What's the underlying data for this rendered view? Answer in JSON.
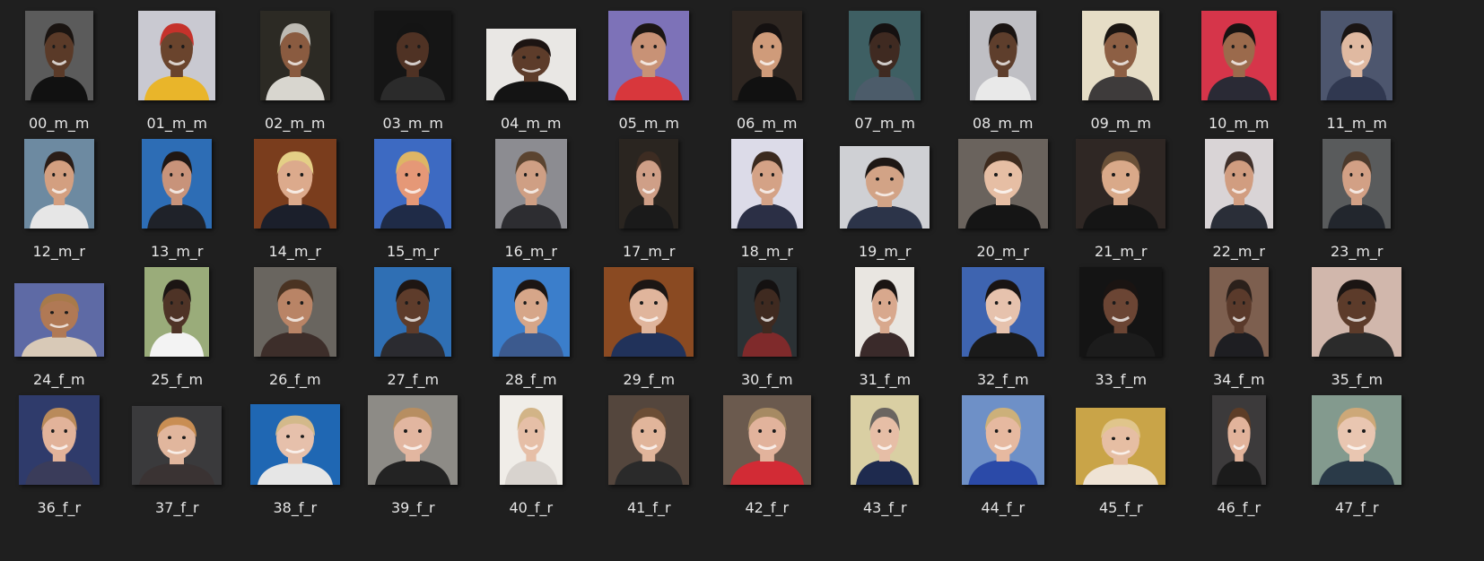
{
  "window": {
    "view": "large-icons",
    "background": "#1f1f1f",
    "label_color": "#e6e6e6"
  },
  "files": [
    {
      "name": "00_m_m",
      "thumb": {
        "bg": "#5b5b5b",
        "skin": "#5a3a28",
        "hair": "#1a1411",
        "top": "#111111",
        "w": 76,
        "h": 100
      }
    },
    {
      "name": "01_m_m",
      "thumb": {
        "bg": "#c9c9d1",
        "skin": "#6a442d",
        "hair": "#c5322b",
        "top": "#e9b52a",
        "w": 86,
        "h": 100
      }
    },
    {
      "name": "02_m_m",
      "thumb": {
        "bg": "#2c2a24",
        "skin": "#8a5b40",
        "hair": "#bdbab3",
        "top": "#d8d6cf",
        "w": 78,
        "h": 100
      }
    },
    {
      "name": "03_m_m",
      "thumb": {
        "bg": "#151515",
        "skin": "#4f3224",
        "hair": "#141414",
        "top": "#2b2b2b",
        "w": 86,
        "h": 100
      }
    },
    {
      "name": "04_m_m",
      "thumb": {
        "bg": "#e9e7e4",
        "skin": "#5d3c2a",
        "hair": "#1c1412",
        "top": "#141414",
        "w": 100,
        "h": 80
      }
    },
    {
      "name": "05_m_m",
      "thumb": {
        "bg": "#7d72b8",
        "skin": "#c89276",
        "hair": "#1c1613",
        "top": "#d8373c",
        "w": 90,
        "h": 100
      }
    },
    {
      "name": "06_m_m",
      "thumb": {
        "bg": "#2e2621",
        "skin": "#cf9b7a",
        "hair": "#151111",
        "top": "#111111",
        "w": 78,
        "h": 100
      }
    },
    {
      "name": "07_m_m",
      "thumb": {
        "bg": "#3e5f63",
        "skin": "#3f2a21",
        "hair": "#151111",
        "top": "#4c5c6a",
        "w": 80,
        "h": 100
      }
    },
    {
      "name": "08_m_m",
      "thumb": {
        "bg": "#bfbfc4",
        "skin": "#5e3e2c",
        "hair": "#1a1412",
        "top": "#e9e9e9",
        "w": 74,
        "h": 100
      }
    },
    {
      "name": "09_m_m",
      "thumb": {
        "bg": "#e6ddc6",
        "skin": "#8d5f44",
        "hair": "#1b1512",
        "top": "#3e3b3b",
        "w": 86,
        "h": 100
      }
    },
    {
      "name": "10_m_m",
      "thumb": {
        "bg": "#d6354a",
        "skin": "#9b6a4c",
        "hair": "#181312",
        "top": "#2a2a35",
        "w": 84,
        "h": 100
      }
    },
    {
      "name": "11_m_m",
      "thumb": {
        "bg": "#4d566e",
        "skin": "#e0b9a1",
        "hair": "#1a1514",
        "top": "#303850",
        "w": 80,
        "h": 100
      }
    },
    {
      "name": "12_m_r",
      "thumb": {
        "bg": "#6d8aa1",
        "skin": "#d39f80",
        "hair": "#2a1d17",
        "top": "#e6e6e6",
        "w": 78,
        "h": 100
      }
    },
    {
      "name": "13_m_r",
      "thumb": {
        "bg": "#2d6db5",
        "skin": "#c8937a",
        "hair": "#1f1714",
        "top": "#1f2229",
        "w": 78,
        "h": 100
      }
    },
    {
      "name": "14_m_r",
      "thumb": {
        "bg": "#7a3d1d",
        "skin": "#dcaa8c",
        "hair": "#e4cf86",
        "top": "#1b1f2b",
        "w": 92,
        "h": 100
      }
    },
    {
      "name": "15_m_r",
      "thumb": {
        "bg": "#3d6ac2",
        "skin": "#e59877",
        "hair": "#ddb565",
        "top": "#1f2b47",
        "w": 86,
        "h": 100
      }
    },
    {
      "name": "16_m_r",
      "thumb": {
        "bg": "#8c8c91",
        "skin": "#cf9f84",
        "hair": "#5b4430",
        "top": "#2d2d31",
        "w": 80,
        "h": 100
      }
    },
    {
      "name": "17_m_r",
      "thumb": {
        "bg": "#2a2520",
        "skin": "#cf9f87",
        "hair": "#3d2c22",
        "top": "#1a1a1a",
        "w": 66,
        "h": 100
      }
    },
    {
      "name": "18_m_r",
      "thumb": {
        "bg": "#dcdbe8",
        "skin": "#d4a286",
        "hair": "#3b2a1f",
        "top": "#2b2f45",
        "w": 80,
        "h": 100
      }
    },
    {
      "name": "19_m_r",
      "thumb": {
        "bg": "#cfd0d4",
        "skin": "#d2a386",
        "hair": "#1e1714",
        "top": "#2c3449",
        "w": 100,
        "h": 92
      }
    },
    {
      "name": "20_m_r",
      "thumb": {
        "bg": "#6a635d",
        "skin": "#e6bea4",
        "hair": "#3e2b1e",
        "top": "#151515",
        "w": 100,
        "h": 100
      }
    },
    {
      "name": "21_m_r",
      "thumb": {
        "bg": "#2f2724",
        "skin": "#d9a989",
        "hair": "#6b5138",
        "top": "#151515",
        "w": 100,
        "h": 100
      }
    },
    {
      "name": "22_m_r",
      "thumb": {
        "bg": "#d9d4d6",
        "skin": "#d19d80",
        "hair": "#40302a",
        "top": "#2a2e38",
        "w": 76,
        "h": 100
      }
    },
    {
      "name": "23_m_r",
      "thumb": {
        "bg": "#595b5c",
        "skin": "#d2a085",
        "hair": "#4c3a2c",
        "top": "#22262d",
        "w": 76,
        "h": 100
      }
    },
    {
      "name": "24_f_m",
      "thumb": {
        "bg": "#5e6aa5",
        "skin": "#b07955",
        "hair": "#a87a4a",
        "top": "#d8c9b7",
        "w": 100,
        "h": 82
      }
    },
    {
      "name": "25_f_m",
      "thumb": {
        "bg": "#9aac7a",
        "skin": "#4e3326",
        "hair": "#1b1513",
        "top": "#f3f3f3",
        "w": 72,
        "h": 100
      }
    },
    {
      "name": "26_f_m",
      "thumb": {
        "bg": "#69655f",
        "skin": "#b98466",
        "hair": "#4a3322",
        "top": "#3d2e2a",
        "w": 92,
        "h": 100
      }
    },
    {
      "name": "27_f_m",
      "thumb": {
        "bg": "#2f6fb4",
        "skin": "#5e3c2b",
        "hair": "#1e1613",
        "top": "#2b2b30",
        "w": 86,
        "h": 100
      }
    },
    {
      "name": "28_f_m",
      "thumb": {
        "bg": "#3b7ecb",
        "skin": "#d6a689",
        "hair": "#1c1614",
        "top": "#3c5a8e",
        "w": 86,
        "h": 100
      }
    },
    {
      "name": "29_f_m",
      "thumb": {
        "bg": "#8a4a22",
        "skin": "#e0b59c",
        "hair": "#1c1614",
        "top": "#21325a",
        "w": 100,
        "h": 100
      }
    },
    {
      "name": "30_f_m",
      "thumb": {
        "bg": "#2b3134",
        "skin": "#3f2a20",
        "hair": "#141111",
        "top": "#7f2a2b",
        "w": 66,
        "h": 100
      }
    },
    {
      "name": "31_f_m",
      "thumb": {
        "bg": "#e9e6e1",
        "skin": "#d8a88d",
        "hair": "#1b1513",
        "top": "#3a2a2a",
        "w": 66,
        "h": 100
      }
    },
    {
      "name": "32_f_m",
      "thumb": {
        "bg": "#3e64b0",
        "skin": "#e6c2ad",
        "hair": "#191413",
        "top": "#1a1a1a",
        "w": 92,
        "h": 100
      }
    },
    {
      "name": "33_f_m",
      "thumb": {
        "bg": "#141414",
        "skin": "#6b4534",
        "hair": "#1a1412",
        "top": "#1c1c1c",
        "w": 92,
        "h": 100
      }
    },
    {
      "name": "34_f_m",
      "thumb": {
        "bg": "#7d5f4f",
        "skin": "#5a3a2b",
        "hair": "#2b201b",
        "top": "#1e1e22",
        "w": 66,
        "h": 100
      }
    },
    {
      "name": "35_f_m",
      "thumb": {
        "bg": "#d1b7ac",
        "skin": "#5c3b2a",
        "hair": "#1b1513",
        "top": "#2b2b2b",
        "w": 100,
        "h": 100
      }
    },
    {
      "name": "36_f_r",
      "thumb": {
        "bg": "#2f3b6b",
        "skin": "#e2b39a",
        "hair": "#b98a5a",
        "top": "#3a3c5a",
        "w": 90,
        "h": 100
      }
    },
    {
      "name": "37_f_r",
      "thumb": {
        "bg": "#3a3a3c",
        "skin": "#e1b69d",
        "hair": "#c98e53",
        "top": "#3a3333",
        "w": 100,
        "h": 88
      }
    },
    {
      "name": "38_f_r",
      "thumb": {
        "bg": "#1f67b3",
        "skin": "#e6c0ab",
        "hair": "#d3b98a",
        "top": "#e6e6e6",
        "w": 100,
        "h": 90
      }
    },
    {
      "name": "39_f_r",
      "thumb": {
        "bg": "#8d8b86",
        "skin": "#e2b6a0",
        "hair": "#b78e61",
        "top": "#232323",
        "w": 100,
        "h": 100
      }
    },
    {
      "name": "40_f_r",
      "thumb": {
        "bg": "#f0ede8",
        "skin": "#e6bfa7",
        "hair": "#d2b487",
        "top": "#d8d3ce",
        "w": 70,
        "h": 100
      }
    },
    {
      "name": "41_f_r",
      "thumb": {
        "bg": "#54463d",
        "skin": "#e1b59b",
        "hair": "#6b4d35",
        "top": "#2a2a2a",
        "w": 90,
        "h": 100
      }
    },
    {
      "name": "42_f_r",
      "thumb": {
        "bg": "#6b5a4e",
        "skin": "#e2b39c",
        "hair": "#a68a63",
        "top": "#d22b35",
        "w": 98,
        "h": 100
      }
    },
    {
      "name": "43_f_r",
      "thumb": {
        "bg": "#d9cfa3",
        "skin": "#e6bea6",
        "hair": "#6a6560",
        "top": "#1e2a4e",
        "w": 76,
        "h": 100
      }
    },
    {
      "name": "44_f_r",
      "thumb": {
        "bg": "#6e90c7",
        "skin": "#e6b9a0",
        "hair": "#ccb07a",
        "top": "#2b4aa8",
        "w": 92,
        "h": 100
      }
    },
    {
      "name": "45_f_r",
      "thumb": {
        "bg": "#c9a448",
        "skin": "#e6bea3",
        "hair": "#e0c58b",
        "top": "#efe3d5",
        "w": 100,
        "h": 86
      }
    },
    {
      "name": "46_f_r",
      "thumb": {
        "bg": "#3c3a3b",
        "skin": "#e2b39b",
        "hair": "#5d3d27",
        "top": "#1b1b1b",
        "w": 60,
        "h": 100
      }
    },
    {
      "name": "47_f_r",
      "thumb": {
        "bg": "#839a8e",
        "skin": "#e9c6b1",
        "hair": "#cda878",
        "top": "#2a3a48",
        "w": 100,
        "h": 100
      }
    }
  ]
}
